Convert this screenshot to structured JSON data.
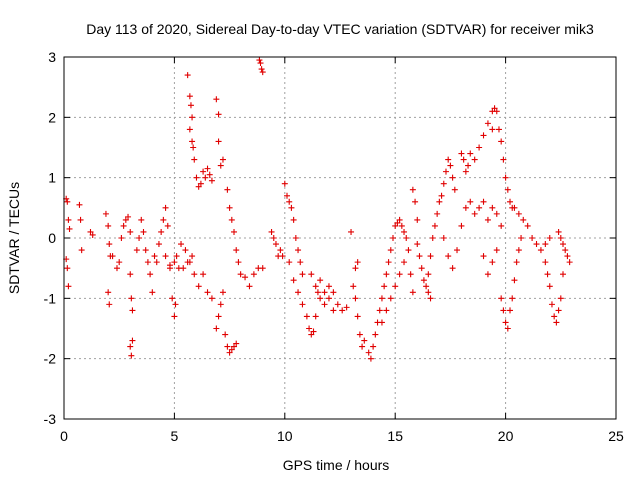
{
  "chart_data": {
    "type": "scatter",
    "title": "Day 113 of 2020, Sidereal Day-to-day VTEC variation (SDTVAR) for receiver mik3",
    "xlabel": "GPS time / hours",
    "ylabel": "SDTVAR / TECUs",
    "xlim": [
      0,
      25
    ],
    "ylim": [
      -3,
      3
    ],
    "xticks": [
      0,
      5,
      10,
      15,
      20,
      25
    ],
    "yticks": [
      -3,
      -2,
      -1,
      0,
      1,
      2,
      3
    ],
    "xtick_labels": [
      "0",
      "5",
      "10",
      "15",
      "20",
      "25"
    ],
    "ytick_labels": [
      "-3",
      "-2",
      "-1",
      "0",
      "1",
      "2",
      "3"
    ],
    "grid": true,
    "marker": "+",
    "series": [
      {
        "name": "SDTVAR",
        "color": "#e00000",
        "points": [
          [
            0.1,
            0.65
          ],
          [
            0.15,
            0.6
          ],
          [
            0.2,
            0.3
          ],
          [
            0.25,
            0.15
          ],
          [
            0.1,
            -0.35
          ],
          [
            0.15,
            -0.5
          ],
          [
            0.2,
            -0.8
          ],
          [
            0.7,
            0.55
          ],
          [
            0.75,
            0.3
          ],
          [
            0.8,
            -0.2
          ],
          [
            1.2,
            0.1
          ],
          [
            1.3,
            0.05
          ],
          [
            1.9,
            0.4
          ],
          [
            2.0,
            0.2
          ],
          [
            2.05,
            -0.1
          ],
          [
            2.0,
            -0.9
          ],
          [
            2.05,
            -1.1
          ],
          [
            2.1,
            -0.3
          ],
          [
            2.2,
            -0.3
          ],
          [
            2.4,
            -0.5
          ],
          [
            2.5,
            -0.4
          ],
          [
            2.6,
            0.0
          ],
          [
            2.7,
            0.2
          ],
          [
            2.8,
            0.3
          ],
          [
            2.9,
            0.35
          ],
          [
            3.0,
            0.1
          ],
          [
            3.0,
            -0.6
          ],
          [
            3.05,
            -1.0
          ],
          [
            3.1,
            -1.2
          ],
          [
            3.0,
            -1.8
          ],
          [
            3.05,
            -1.95
          ],
          [
            3.1,
            -1.7
          ],
          [
            3.3,
            -0.2
          ],
          [
            3.4,
            0.0
          ],
          [
            3.5,
            0.3
          ],
          [
            3.6,
            0.1
          ],
          [
            3.7,
            -0.2
          ],
          [
            3.8,
            -0.4
          ],
          [
            3.9,
            -0.6
          ],
          [
            4.0,
            -0.9
          ],
          [
            4.1,
            -0.3
          ],
          [
            4.2,
            -0.4
          ],
          [
            4.3,
            -0.1
          ],
          [
            4.4,
            0.1
          ],
          [
            4.5,
            0.3
          ],
          [
            4.6,
            0.5
          ],
          [
            4.7,
            0.2
          ],
          [
            4.8,
            -0.5
          ],
          [
            4.9,
            -1.0
          ],
          [
            5.0,
            -1.3
          ],
          [
            5.05,
            -1.1
          ],
          [
            5.1,
            -0.3
          ],
          [
            5.3,
            -0.1
          ],
          [
            5.5,
            -0.2
          ],
          [
            5.7,
            -0.4
          ],
          [
            5.9,
            -0.6
          ],
          [
            6.1,
            -0.8
          ],
          [
            6.3,
            -0.6
          ],
          [
            6.5,
            -0.9
          ],
          [
            6.7,
            -1.0
          ],
          [
            4.6,
            -0.3
          ],
          [
            4.8,
            -0.45
          ],
          [
            5.0,
            -0.4
          ],
          [
            5.2,
            -0.5
          ],
          [
            5.4,
            -0.5
          ],
          [
            5.6,
            -0.4
          ],
          [
            5.8,
            -0.3
          ],
          [
            5.6,
            2.7
          ],
          [
            5.7,
            2.35
          ],
          [
            5.75,
            2.2
          ],
          [
            5.8,
            2.0
          ],
          [
            5.7,
            1.8
          ],
          [
            5.8,
            1.6
          ],
          [
            5.9,
            1.3
          ],
          [
            5.85,
            1.5
          ],
          [
            6.0,
            1.0
          ],
          [
            6.1,
            0.85
          ],
          [
            6.2,
            0.9
          ],
          [
            6.3,
            1.1
          ],
          [
            6.4,
            1.0
          ],
          [
            6.5,
            1.15
          ],
          [
            6.6,
            1.05
          ],
          [
            6.7,
            0.95
          ],
          [
            6.9,
            2.3
          ],
          [
            7.0,
            2.05
          ],
          [
            7.0,
            1.6
          ],
          [
            7.1,
            1.2
          ],
          [
            7.2,
            1.3
          ],
          [
            6.9,
            -1.5
          ],
          [
            7.0,
            -1.3
          ],
          [
            7.1,
            -1.1
          ],
          [
            7.2,
            -0.9
          ],
          [
            7.3,
            -1.6
          ],
          [
            7.4,
            -1.8
          ],
          [
            7.5,
            -1.9
          ],
          [
            7.6,
            -1.85
          ],
          [
            7.7,
            -1.8
          ],
          [
            7.8,
            -1.75
          ],
          [
            7.4,
            0.8
          ],
          [
            7.5,
            0.5
          ],
          [
            7.6,
            0.3
          ],
          [
            7.7,
            0.1
          ],
          [
            7.8,
            -0.2
          ],
          [
            7.9,
            -0.4
          ],
          [
            8.0,
            -0.6
          ],
          [
            8.2,
            -0.65
          ],
          [
            8.4,
            -0.8
          ],
          [
            8.6,
            -0.6
          ],
          [
            8.8,
            -0.5
          ],
          [
            9.0,
            -0.5
          ],
          [
            8.85,
            2.95
          ],
          [
            8.9,
            2.9
          ],
          [
            8.95,
            2.8
          ],
          [
            9.0,
            2.75
          ],
          [
            9.5,
            0.0
          ],
          [
            9.6,
            -0.1
          ],
          [
            9.7,
            -0.3
          ],
          [
            9.8,
            -0.2
          ],
          [
            9.9,
            -0.3
          ],
          [
            9.4,
            0.1
          ],
          [
            10.0,
            0.9
          ],
          [
            10.1,
            0.7
          ],
          [
            10.2,
            0.6
          ],
          [
            10.3,
            0.5
          ],
          [
            10.4,
            0.3
          ],
          [
            10.5,
            0.0
          ],
          [
            10.6,
            -0.2
          ],
          [
            10.7,
            -0.4
          ],
          [
            10.8,
            -0.6
          ],
          [
            10.2,
            -0.4
          ],
          [
            10.4,
            -0.7
          ],
          [
            10.6,
            -0.9
          ],
          [
            10.8,
            -1.1
          ],
          [
            11.0,
            -1.3
          ],
          [
            11.1,
            -1.5
          ],
          [
            11.2,
            -1.6
          ],
          [
            11.3,
            -1.55
          ],
          [
            11.4,
            -1.3
          ],
          [
            11.5,
            -0.9
          ],
          [
            11.6,
            -1.0
          ],
          [
            11.8,
            -1.1
          ],
          [
            12.0,
            -1.0
          ],
          [
            12.2,
            -1.2
          ],
          [
            12.4,
            -1.1
          ],
          [
            12.6,
            -1.2
          ],
          [
            12.8,
            -1.15
          ],
          [
            11.2,
            -0.6
          ],
          [
            11.4,
            -0.8
          ],
          [
            11.6,
            -0.7
          ],
          [
            11.8,
            -0.9
          ],
          [
            12.0,
            -0.8
          ],
          [
            12.2,
            -0.9
          ],
          [
            13.0,
            0.1
          ],
          [
            13.1,
            -0.8
          ],
          [
            13.2,
            -1.0
          ],
          [
            13.3,
            -1.3
          ],
          [
            13.4,
            -1.6
          ],
          [
            13.5,
            -1.8
          ],
          [
            13.6,
            -1.7
          ],
          [
            13.2,
            -0.5
          ],
          [
            13.3,
            -0.4
          ],
          [
            13.8,
            -1.9
          ],
          [
            13.9,
            -2.0
          ],
          [
            14.0,
            -1.8
          ],
          [
            14.1,
            -1.6
          ],
          [
            14.2,
            -1.4
          ],
          [
            14.3,
            -1.2
          ],
          [
            14.4,
            -1.0
          ],
          [
            14.5,
            -0.8
          ],
          [
            14.6,
            -0.6
          ],
          [
            14.7,
            -0.4
          ],
          [
            14.8,
            -0.2
          ],
          [
            14.9,
            0.0
          ],
          [
            15.0,
            0.2
          ],
          [
            15.1,
            0.25
          ],
          [
            15.2,
            0.3
          ],
          [
            15.3,
            0.2
          ],
          [
            15.4,
            0.1
          ],
          [
            15.5,
            0.0
          ],
          [
            15.6,
            -0.2
          ],
          [
            15.7,
            -0.6
          ],
          [
            15.8,
            -0.9
          ],
          [
            14.4,
            -1.4
          ],
          [
            14.6,
            -1.2
          ],
          [
            14.8,
            -1.0
          ],
          [
            15.0,
            -0.8
          ],
          [
            15.2,
            -0.6
          ],
          [
            15.4,
            -0.4
          ],
          [
            16.0,
            -0.1
          ],
          [
            16.1,
            -0.3
          ],
          [
            16.2,
            -0.5
          ],
          [
            16.3,
            -0.7
          ],
          [
            16.4,
            -0.8
          ],
          [
            16.5,
            -0.6
          ],
          [
            16.6,
            -0.3
          ],
          [
            16.7,
            0.0
          ],
          [
            16.8,
            0.2
          ],
          [
            16.9,
            0.4
          ],
          [
            15.8,
            0.8
          ],
          [
            15.9,
            0.6
          ],
          [
            16.0,
            0.3
          ],
          [
            16.5,
            -0.9
          ],
          [
            16.6,
            -1.0
          ],
          [
            17.0,
            0.6
          ],
          [
            17.1,
            0.7
          ],
          [
            17.2,
            0.9
          ],
          [
            17.3,
            1.1
          ],
          [
            17.4,
            1.3
          ],
          [
            17.5,
            1.2
          ],
          [
            17.6,
            1.0
          ],
          [
            17.7,
            0.8
          ],
          [
            17.2,
            0.0
          ],
          [
            17.4,
            -0.3
          ],
          [
            17.6,
            -0.5
          ],
          [
            17.8,
            -0.2
          ],
          [
            18.0,
            0.2
          ],
          [
            18.2,
            0.5
          ],
          [
            18.4,
            0.6
          ],
          [
            18.0,
            1.4
          ],
          [
            18.1,
            1.3
          ],
          [
            18.2,
            1.1
          ],
          [
            18.3,
            1.2
          ],
          [
            18.4,
            1.4
          ],
          [
            18.6,
            1.3
          ],
          [
            18.8,
            1.5
          ],
          [
            19.0,
            1.7
          ],
          [
            19.2,
            1.9
          ],
          [
            19.4,
            1.8
          ],
          [
            19.4,
            2.1
          ],
          [
            19.5,
            2.15
          ],
          [
            19.6,
            2.1
          ],
          [
            19.7,
            1.8
          ],
          [
            19.8,
            1.6
          ],
          [
            19.9,
            1.3
          ],
          [
            20.0,
            1.0
          ],
          [
            20.1,
            0.8
          ],
          [
            20.2,
            0.6
          ],
          [
            20.3,
            0.5
          ],
          [
            18.6,
            0.4
          ],
          [
            18.8,
            0.5
          ],
          [
            19.0,
            0.6
          ],
          [
            19.2,
            0.3
          ],
          [
            19.4,
            0.5
          ],
          [
            19.6,
            0.4
          ],
          [
            19.8,
            0.2
          ],
          [
            19.0,
            -0.3
          ],
          [
            19.2,
            -0.6
          ],
          [
            19.4,
            -0.4
          ],
          [
            19.6,
            -0.2
          ],
          [
            19.8,
            -1.0
          ],
          [
            19.9,
            -1.2
          ],
          [
            20.0,
            -1.4
          ],
          [
            20.1,
            -1.5
          ],
          [
            20.2,
            -1.2
          ],
          [
            20.3,
            -1.0
          ],
          [
            20.4,
            -0.7
          ],
          [
            20.5,
            -0.4
          ],
          [
            20.6,
            -0.2
          ],
          [
            20.7,
            0.0
          ],
          [
            20.4,
            0.5
          ],
          [
            20.6,
            0.4
          ],
          [
            20.8,
            0.3
          ],
          [
            21.0,
            0.2
          ],
          [
            21.2,
            0.0
          ],
          [
            21.4,
            -0.1
          ],
          [
            21.6,
            -0.2
          ],
          [
            21.8,
            -0.1
          ],
          [
            22.0,
            0.0
          ],
          [
            21.8,
            -0.4
          ],
          [
            21.9,
            -0.6
          ],
          [
            22.0,
            -0.8
          ],
          [
            22.1,
            -1.1
          ],
          [
            22.2,
            -1.3
          ],
          [
            22.3,
            -1.4
          ],
          [
            22.4,
            -1.2
          ],
          [
            22.5,
            -1.0
          ],
          [
            22.6,
            -0.6
          ],
          [
            22.4,
            0.1
          ],
          [
            22.5,
            0.0
          ],
          [
            22.6,
            -0.1
          ],
          [
            22.7,
            -0.2
          ],
          [
            22.8,
            -0.3
          ],
          [
            22.9,
            -0.4
          ]
        ]
      }
    ]
  }
}
